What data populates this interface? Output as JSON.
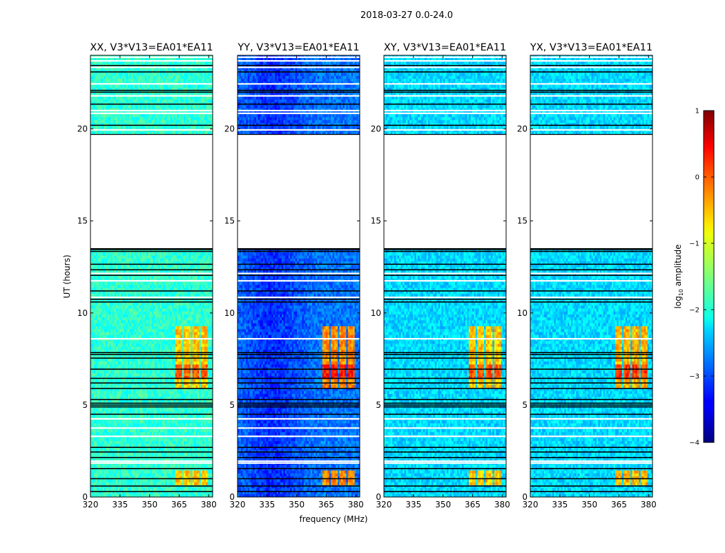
{
  "figure": {
    "suptitle": "2018-03-27 0.0-24.0"
  },
  "chart_data": {
    "type": "heatmap",
    "title": "2018-03-27 0.0-24.0",
    "xlabel": "frequency (MHz)",
    "ylabel": "UT (hours)",
    "xlim": [
      320,
      382
    ],
    "ylim": [
      0,
      24
    ],
    "x_ticks": [
      "320",
      "335",
      "350",
      "365",
      "380"
    ],
    "y_ticks": [
      "0",
      "5",
      "10",
      "15",
      "20"
    ],
    "panels": [
      {
        "title": "XX, V3*V13=EA01*EA11",
        "polarization": "XX",
        "background_log_amp": -1.9,
        "rfi_peak_log_amp": -0.1
      },
      {
        "title": "YY, V3*V13=EA01*EA11",
        "polarization": "YY",
        "background_log_amp": -2.8,
        "rfi_peak_log_amp": 0.2
      },
      {
        "title": "XY, V3*V13=EA01*EA11",
        "polarization": "XY",
        "background_log_amp": -2.3,
        "rfi_peak_log_amp": -0.1
      },
      {
        "title": "YX, V3*V13=EA01*EA11",
        "polarization": "YX",
        "background_log_amp": -2.3,
        "rfi_peak_log_amp": 0.0
      }
    ],
    "flagged_gap_ut": [
      13.5,
      19.7
    ],
    "rfi_band_mhz": [
      363,
      380
    ],
    "rfi_time_ranges_ut": [
      [
        5.9,
        9.2
      ],
      [
        0.7,
        1.4
      ]
    ],
    "black_rows_ut": [
      0.3,
      0.6,
      1.0,
      1.55,
      2.15,
      2.45,
      2.7,
      4.5,
      4.9,
      5.0,
      5.1,
      5.3,
      5.9,
      6.2,
      6.45,
      6.95,
      7.55,
      7.75,
      7.85,
      10.6,
      10.75,
      11.2,
      12.05,
      12.35,
      12.65,
      13.35,
      13.45,
      20.2,
      21.35,
      22.0,
      22.1,
      23.1,
      23.45
    ],
    "white_rows_ut": [
      1.85,
      1.95,
      3.3,
      3.75,
      4.25,
      8.6,
      10.85,
      11.75,
      12.15,
      19.95,
      20.85,
      21.0,
      21.8,
      22.45,
      23.35,
      23.7,
      23.9
    ],
    "colorbar": {
      "label": "log10 amplitude",
      "label_main": "log",
      "label_sub": "10",
      "label_rest": " amplitude",
      "range": [
        -4,
        1
      ],
      "ticks": [
        "1",
        "0",
        "−1",
        "−2",
        "−3",
        "−4"
      ],
      "colormap": "jet"
    }
  }
}
